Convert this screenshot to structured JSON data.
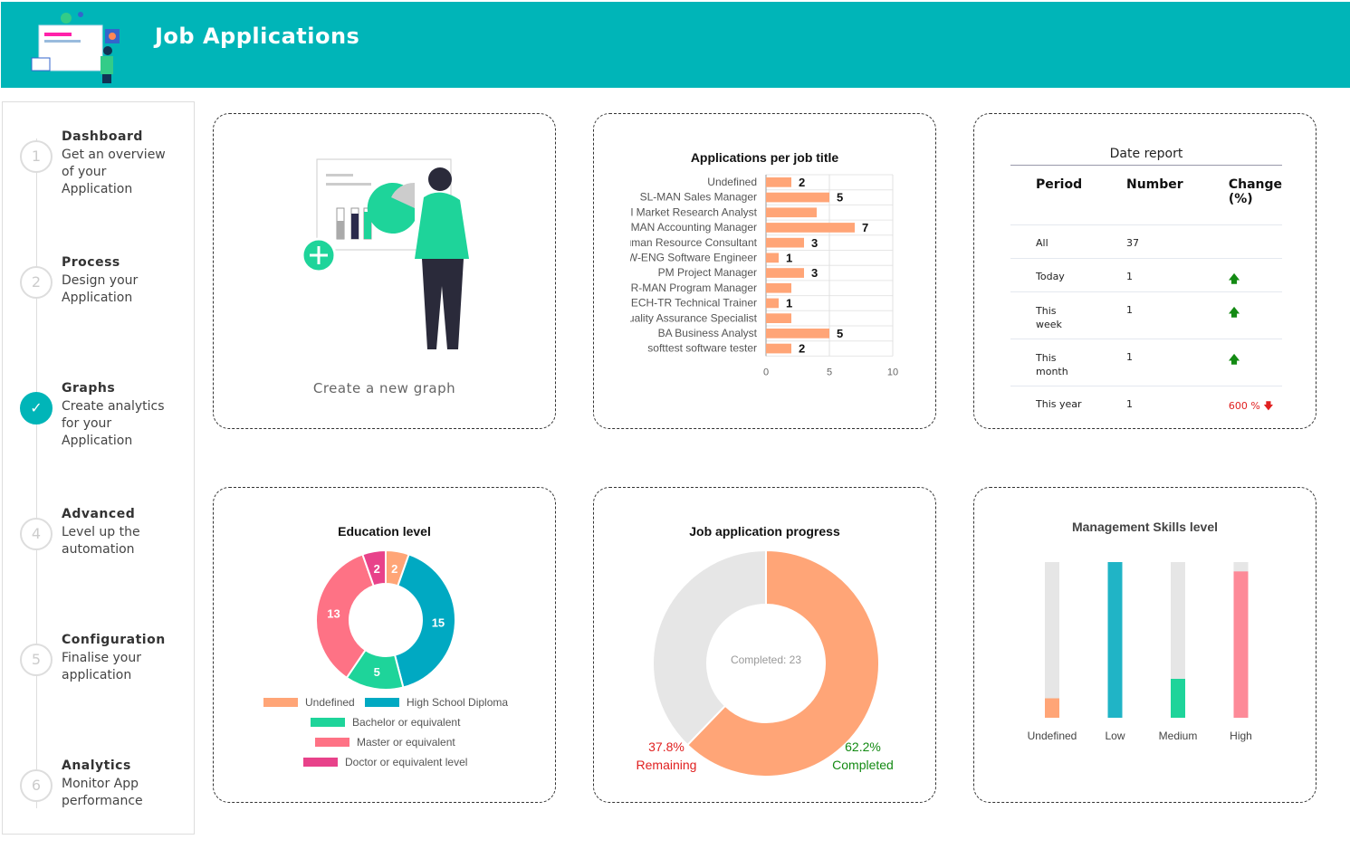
{
  "header": {
    "title": "Job Applications"
  },
  "sidebar": {
    "steps": [
      {
        "num": "1",
        "title": "Dashboard",
        "desc": "Get an overview of your Application",
        "done": false
      },
      {
        "num": "2",
        "title": "Process",
        "desc": "Design your Application",
        "done": false
      },
      {
        "num": "3",
        "title": "Graphs",
        "desc": "Create analytics for your Application",
        "done": true
      },
      {
        "num": "4",
        "title": "Advanced",
        "desc": "Level up the automation",
        "done": false
      },
      {
        "num": "5",
        "title": "Configuration",
        "desc": "Finalise your application",
        "done": false
      },
      {
        "num": "6",
        "title": "Analytics",
        "desc": "Monitor App performance",
        "done": false
      }
    ]
  },
  "new_graph": {
    "label": "Create a new graph"
  },
  "date_report": {
    "title": "Date report",
    "headers": [
      "Period",
      "Number",
      "Change (%)"
    ],
    "rows": [
      {
        "period": "All",
        "number": "37",
        "change": ""
      },
      {
        "period": "Today",
        "number": "1",
        "change": "up"
      },
      {
        "period": "This week",
        "number": "1",
        "change": "up"
      },
      {
        "period": "This month",
        "number": "1",
        "change": "up"
      },
      {
        "period": "This year",
        "number": "1",
        "change": "600 %"
      }
    ]
  },
  "colors": {
    "header": "#00b5b8",
    "orange": "#ffa577",
    "teal": "#00a9c2",
    "green": "#1ed49a",
    "pink": "#fe7285",
    "magenta": "#e8428a",
    "grey": "#e6e6e6"
  },
  "chart_data": [
    {
      "type": "bar",
      "orientation": "horizontal",
      "title": "Applications per job title",
      "categories": [
        "Undefined",
        "SL-MAN Sales Manager",
        "l Market Research Analyst",
        "MAN Accounting Manager",
        "uman Resource Consultant",
        "W-ENG Software Engineer",
        "PM Project Manager",
        "R-MAN Program Manager",
        "ECH-TR Technical Trainer",
        "uality Assurance Specialist",
        "BA Business Analyst",
        "softtest software tester"
      ],
      "values": [
        2,
        5,
        4,
        7,
        3,
        1,
        3,
        2,
        1,
        2,
        5,
        2
      ],
      "labels": [
        "2",
        "5",
        "",
        "7",
        "3",
        "1",
        "3",
        "",
        "1",
        "",
        "5",
        "2"
      ],
      "xlim": [
        0,
        10
      ],
      "xticks": [
        "0",
        "5",
        "10"
      ],
      "grid": true
    },
    {
      "type": "pie",
      "donut": true,
      "title": "Education level",
      "categories": [
        "Undefined",
        "High School Diploma",
        "Bachelor or equivalent",
        "Master or equivalent",
        "Doctor or equivalent level"
      ],
      "values": [
        2,
        15,
        5,
        13,
        2
      ],
      "legend": "bottom"
    },
    {
      "type": "pie",
      "donut": true,
      "title": "Job application progress",
      "center_label": "Completed: 23",
      "categories": [
        "Completed",
        "Remaining"
      ],
      "values": [
        62.2,
        37.8
      ],
      "labels": [
        {
          "pct": "62.2%",
          "name": "Completed"
        },
        {
          "pct": "37.8%",
          "name": "Remaining"
        }
      ]
    },
    {
      "type": "bar",
      "title": "Management Skills level",
      "categories": [
        "Undefined",
        "Low",
        "Medium",
        "High"
      ],
      "values_percent": [
        12.5,
        100,
        25,
        94
      ]
    }
  ]
}
